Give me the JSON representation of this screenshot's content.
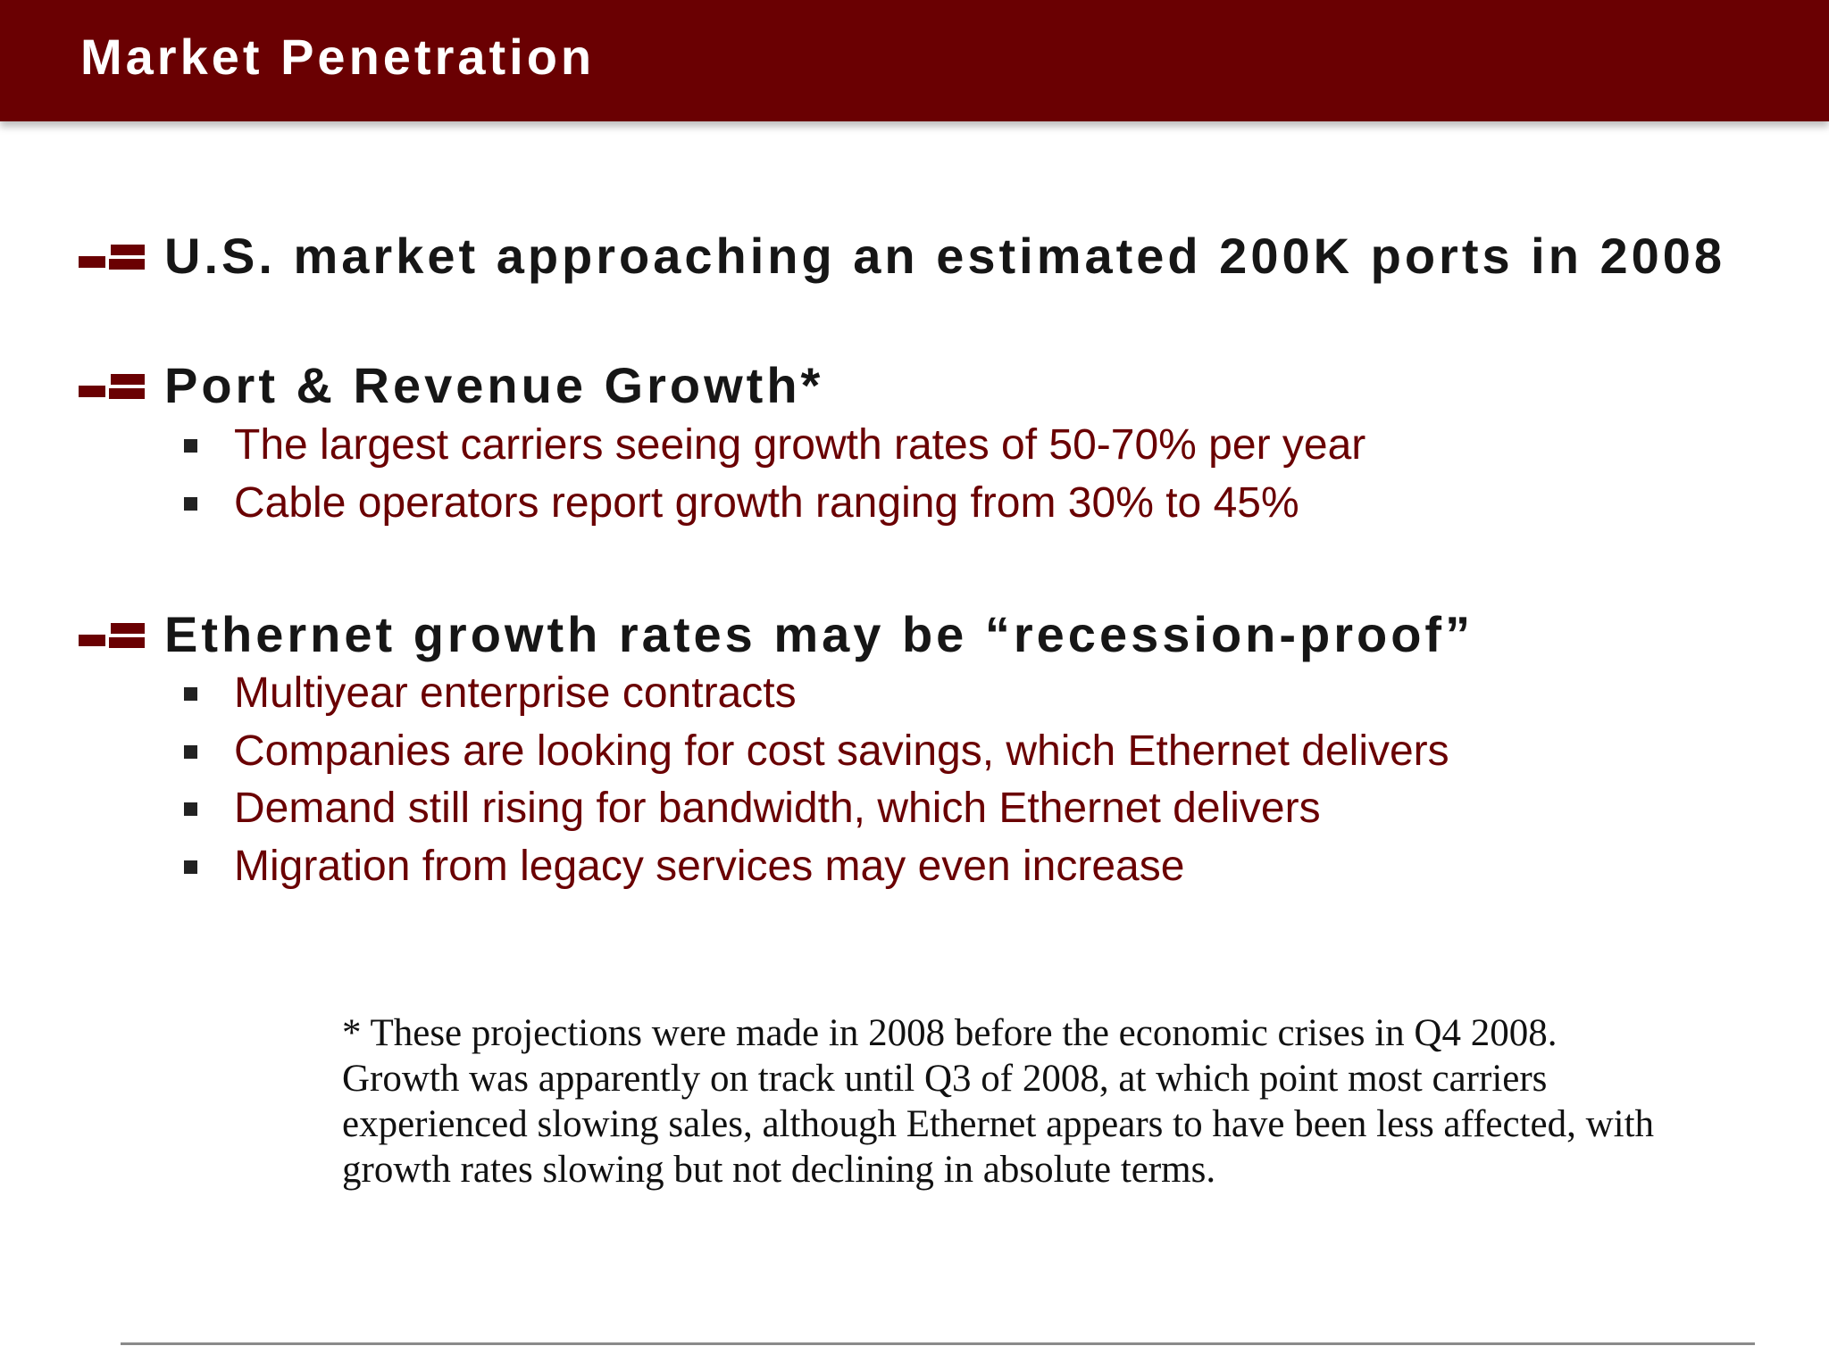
{
  "slide": {
    "title": "Market Penetration",
    "accent_color": "#6a0002",
    "sections": [
      {
        "heading": "U.S. market approaching an estimated 200K ports in 2008",
        "items": []
      },
      {
        "heading": "Port & Revenue Growth*",
        "items": [
          "The largest carriers seeing growth rates of 50-70% per year",
          "Cable operators report growth ranging from 30% to 45%"
        ]
      },
      {
        "heading": "Ethernet growth rates may be “recession-proof”",
        "items": [
          "Multiyear enterprise contracts",
          "Companies are looking for cost savings, which Ethernet delivers",
          "Demand still rising for bandwidth, which Ethernet delivers",
          "Migration from legacy services may even increase"
        ]
      }
    ],
    "footnote_lines": [
      "* These projections were made in 2008 before the economic crises in Q4 2008.",
      "Growth was apparently on track until Q3 of 2008, at which point most carriers",
      "experienced slowing sales, although Ethernet appears to have been less affected, with",
      "growth rates slowing but not declining in absolute terms."
    ],
    "icons": {
      "level1_bullet": "brick-bullet-icon",
      "level2_bullet": "square-bullet-icon"
    }
  }
}
